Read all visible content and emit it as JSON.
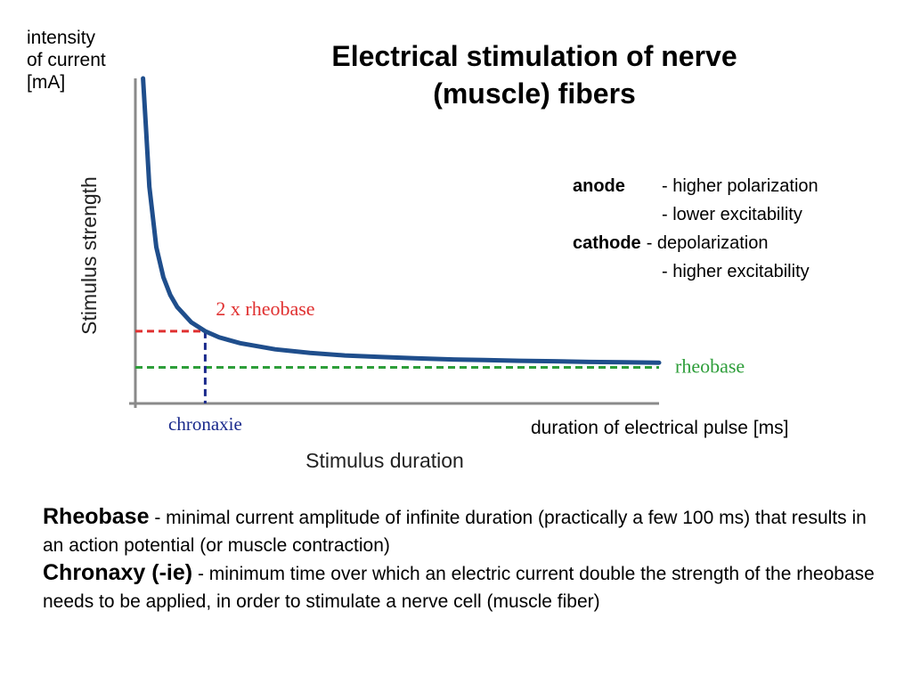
{
  "slide": {
    "title_lines": [
      "Electrical stimulation of nerve",
      "(muscle) fibers"
    ],
    "y_unit_label_lines": [
      "intensity",
      "of current",
      "[mA]"
    ],
    "x_unit_label": "duration of electrical pulse [ms]"
  },
  "electrodes": [
    {
      "term": "anode",
      "effects": [
        "- higher polarization",
        "- lower excitability"
      ]
    },
    {
      "term": "cathode",
      "effects": [
        "- depolarization",
        "- higher excitability"
      ]
    }
  ],
  "definitions": [
    {
      "term": "Rheobase",
      "text": "- minimal current amplitude of infinite duration (practically a few 100 ms) that results in an action potential (or muscle contraction)"
    },
    {
      "term": "Chronaxy (-ie)",
      "text": "- minimum time over which an electric current double the strength of the rheobase needs to be applied, in order to stimulate a nerve cell (muscle fiber)"
    }
  ],
  "chart_data": {
    "type": "line",
    "xlabel": "Stimulus duration",
    "ylabel": "Stimulus strength",
    "series": [
      {
        "x": [
          0.11,
          0.15,
          0.2,
          0.3,
          0.4,
          0.5,
          0.6,
          0.8,
          1.0,
          1.2,
          1.5,
          2.0,
          2.5,
          3.0,
          3.5,
          4.0,
          4.5,
          5.0,
          5.5,
          6.0,
          6.5,
          7.0,
          7.5
        ],
        "y": [
          10.09,
          7.67,
          6.0,
          4.33,
          3.5,
          3.0,
          2.67,
          2.25,
          2.0,
          1.83,
          1.67,
          1.5,
          1.4,
          1.33,
          1.29,
          1.25,
          1.22,
          1.2,
          1.18,
          1.17,
          1.15,
          1.14,
          1.13
        ],
        "color": "#1f4e8c"
      }
    ],
    "reference_lines": [
      {
        "label": "2 x rheobase",
        "y": 2.0,
        "color": "#e03030",
        "style": "dashed"
      },
      {
        "label": "rheobase",
        "y": 1.0,
        "color": "#2e9e3a",
        "style": "dashed"
      },
      {
        "label": "chronaxie",
        "x": 1.0,
        "color": "#1a2a8c",
        "style": "dashed"
      }
    ],
    "xlim": [
      0,
      7.5
    ],
    "ylim": [
      0,
      9
    ],
    "grid": false
  }
}
